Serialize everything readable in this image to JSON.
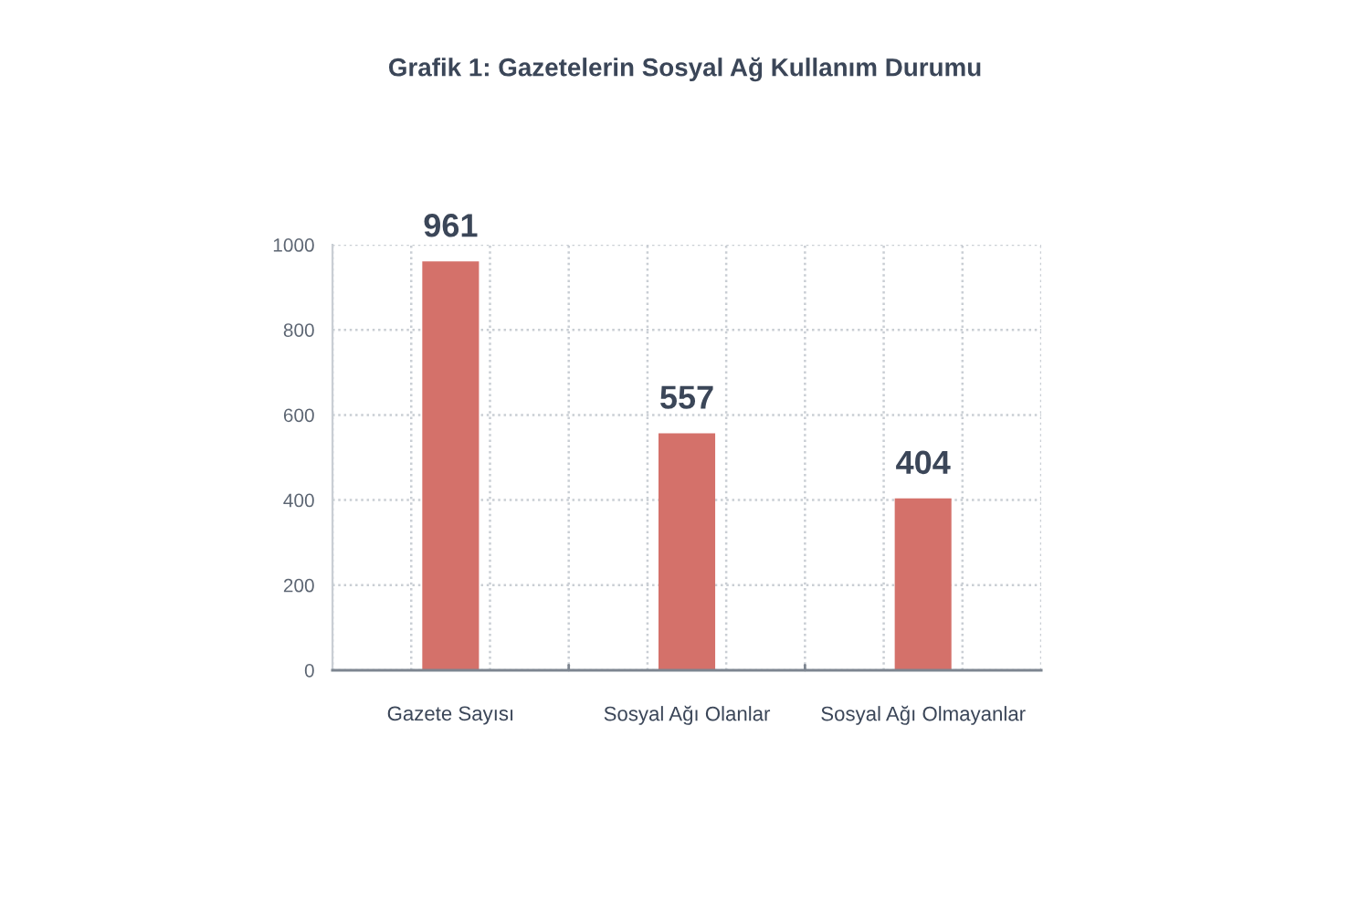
{
  "chart_data": {
    "type": "bar",
    "title": "Grafik 1: Gazetelerin Sosyal Ağ Kullanım Durumu",
    "categories": [
      "Gazete Sayısı",
      "Sosyal Ağı Olanlar",
      "Sosyal Ağı Olmayanlar"
    ],
    "values": [
      961,
      557,
      404
    ],
    "color": "#d4716a",
    "ylim": [
      0,
      1000
    ],
    "yticks": [
      0,
      200,
      400,
      600,
      800,
      1000
    ],
    "grid": true,
    "data_labels": true
  }
}
